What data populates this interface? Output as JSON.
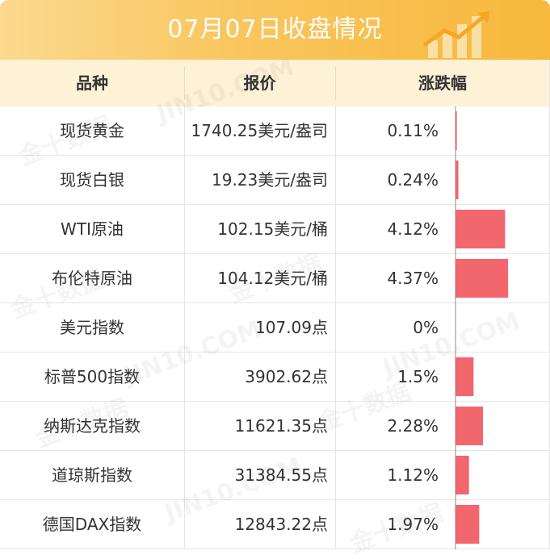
{
  "title": "07月07日收盘情况",
  "columns": [
    "品种",
    "报价",
    "涨跌幅"
  ],
  "rows": [
    {
      "name": "现货黄金",
      "price": "1740.25美元/盎司",
      "change": "0.11%"
    },
    {
      "name": "现货白银",
      "price": "19.23美元/盎司",
      "change": "0.24%"
    },
    {
      "name": "WTI原油",
      "price": "102.15美元/桶",
      "change": "4.12%"
    },
    {
      "name": "布伦特原油",
      "price": "104.12美元/桶",
      "change": "4.37%"
    },
    {
      "name": "美元指数",
      "price": "107.09点",
      "change": "0%"
    },
    {
      "name": "标普500指数",
      "price": "3902.62点",
      "change": "1.5%"
    },
    {
      "name": "纳斯达克指数",
      "price": "11621.35点",
      "change": "2.28%"
    },
    {
      "name": "道琼斯指数",
      "price": "31384.55点",
      "change": "1.12%"
    },
    {
      "name": "德国DAX指数",
      "price": "12843.22点",
      "change": "1.97%"
    }
  ],
  "watermark": {
    "cn": "金十数据",
    "en": "JIN10.COM"
  },
  "colors": {
    "bar": "#f2666e",
    "header_bg": "#fdf1d6",
    "title_bg": "#f9c55c"
  },
  "chart_data": {
    "type": "bar",
    "categories": [
      "现货黄金",
      "现货白银",
      "WTI原油",
      "布伦特原油",
      "美元指数",
      "标普500指数",
      "纳斯达克指数",
      "道琼斯指数",
      "德国DAX指数"
    ],
    "values": [
      0.11,
      0.24,
      4.12,
      4.37,
      0,
      1.5,
      2.28,
      1.12,
      1.97
    ],
    "orientation": "horizontal",
    "title": "07月07日收盘情况",
    "xlabel": "",
    "ylabel": "涨跌幅"
  }
}
